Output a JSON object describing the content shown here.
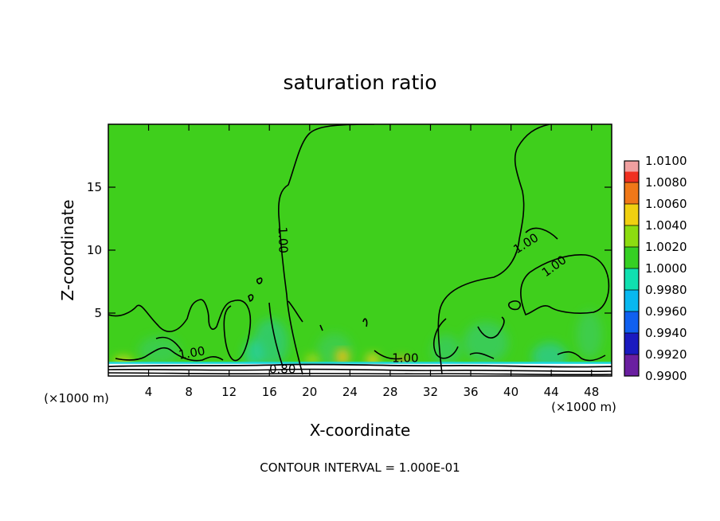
{
  "chart_data": {
    "type": "heatmap",
    "title": "saturation ratio",
    "xlabel": "X-coordinate",
    "ylabel": "Z-coordinate",
    "x_unit_left": "(×1000 m)",
    "x_unit_right": "(×1000 m)",
    "footer": "CONTOUR INTERVAL = 1.000E-01",
    "xlim": [
      0,
      50
    ],
    "ylim": [
      0,
      20
    ],
    "x_ticks": [
      4,
      8,
      12,
      16,
      20,
      24,
      28,
      32,
      36,
      40,
      44,
      48
    ],
    "y_ticks": [
      5,
      10,
      15
    ],
    "field_color": "#3fcf1c",
    "colorbar": {
      "levels": [
        "0.9900",
        "0.9920",
        "0.9940",
        "0.9960",
        "0.9980",
        "1.0000",
        "1.0020",
        "1.0040",
        "1.0060",
        "1.0080",
        "1.0100"
      ],
      "colors": [
        "#6a1fa0",
        "#1a1ac0",
        "#1060f0",
        "#08b8f0",
        "#10e0b0",
        "#36d024",
        "#8cdc10",
        "#f0d010",
        "#f07818",
        "#f03020",
        "#f0a0a0"
      ]
    },
    "contour_labels": [
      {
        "text": "1.00",
        "x": 17.3,
        "z": 10.8,
        "rotate": 88
      },
      {
        "text": "1.00",
        "x": 41.5,
        "z": 10.5,
        "rotate": -32
      },
      {
        "text": "1.00",
        "x": 44.3,
        "z": 8.7,
        "rotate": -36
      },
      {
        "text": "1.00",
        "x": 8.3,
        "z": 1.8,
        "rotate": -10
      },
      {
        "text": "1.00",
        "x": 29.5,
        "z": 1.4,
        "rotate": 0
      },
      {
        "text": "0.80",
        "x": 17.3,
        "z": 0.5,
        "rotate": 0
      }
    ]
  }
}
